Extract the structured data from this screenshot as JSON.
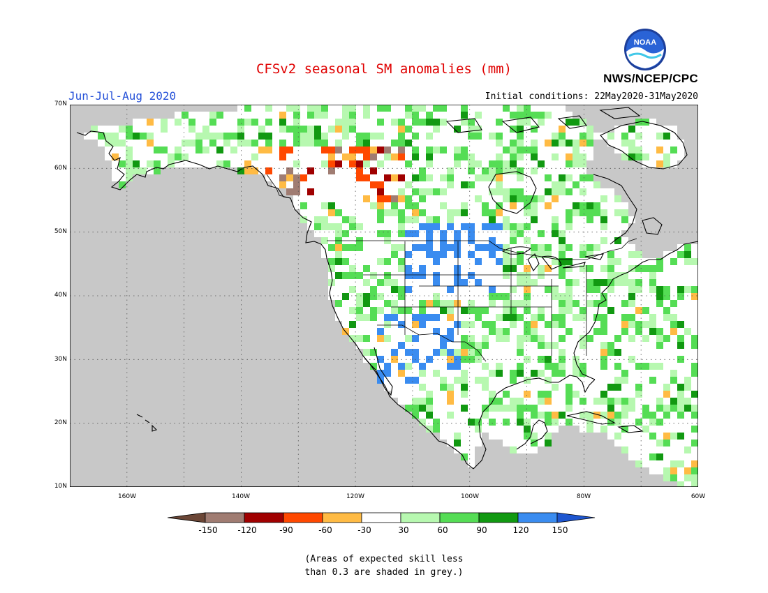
{
  "header": {
    "title": "CFSv2 seasonal SM anomalies (mm)",
    "period": "Jun-Jul-Aug 2020",
    "initial_conditions": "Initial conditions: 22May2020-31May2020",
    "agency": "NWS/NCEP/CPC",
    "logo_text": "NOAA"
  },
  "map": {
    "projection": "lat-lon",
    "lon_range": [
      -170,
      -60
    ],
    "lat_range": [
      10,
      70
    ],
    "lat_labels": [
      "70N",
      "60N",
      "50N",
      "40N",
      "30N",
      "20N",
      "10N"
    ],
    "lon_labels": [
      "160W",
      "140W",
      "120W",
      "100W",
      "80W",
      "60W"
    ],
    "grid": "dotted",
    "no_skill_color": "#c8c8c8",
    "variable": "soil moisture anomaly",
    "units": "mm"
  },
  "colorbar": {
    "colors": [
      "#6b4636",
      "#a07c72",
      "#a00000",
      "#ff4800",
      "#ffbb44",
      "#ffffff",
      "#b7f8b0",
      "#55dd55",
      "#119911",
      "#3a8cf0",
      "#1e56d0"
    ],
    "labels": [
      "-150",
      "-120",
      "-90",
      "-60",
      "-30",
      "30",
      "60",
      "90",
      "120",
      "150"
    ]
  },
  "footnote": {
    "line1": "(Areas of expected skill less",
    "line2": "than 0.3 are shaded in grey.)"
  }
}
